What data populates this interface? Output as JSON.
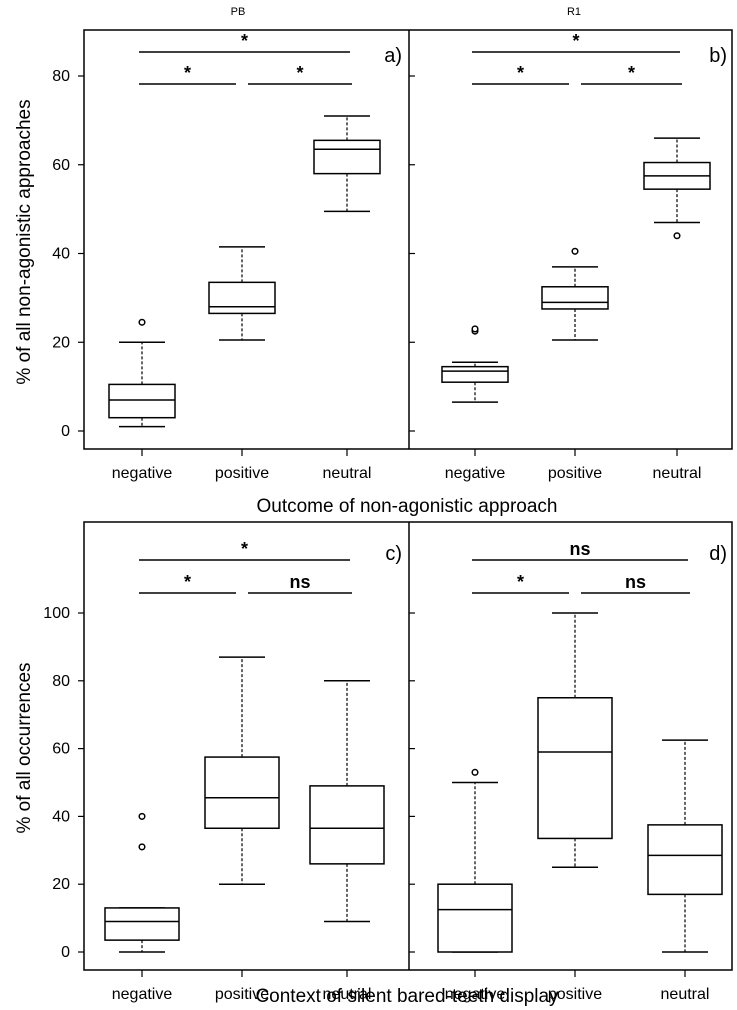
{
  "group_titles": [
    "PB",
    "R1"
  ],
  "chart_data": [
    {
      "type": "box",
      "group": "PB",
      "panel_label": "a)",
      "categories": [
        "negative",
        "positive",
        "neutral"
      ],
      "xlabel": "Outcome of non-agonistic approach",
      "ylabel": "% of all non-agonistic approaches",
      "ylim": [
        -3,
        90
      ],
      "yticks": [
        "0",
        "20",
        "40",
        "60",
        "80"
      ],
      "boxes": [
        {
          "min": 1,
          "q1": 3,
          "median": 7,
          "q3": 10.5,
          "max": 20,
          "outliers": [
            24.5
          ]
        },
        {
          "min": 20.5,
          "q1": 26.5,
          "median": 28,
          "q3": 33.5,
          "max": 41.5,
          "outliers": []
        },
        {
          "min": 49.5,
          "q1": 58,
          "median": 63.5,
          "q3": 65.5,
          "max": 71,
          "outliers": []
        }
      ],
      "significance": [
        {
          "from": 0,
          "to": 2,
          "label": "*"
        },
        {
          "from": 0,
          "to": 1,
          "label": "*"
        },
        {
          "from": 1,
          "to": 2,
          "label": "*"
        }
      ]
    },
    {
      "type": "box",
      "group": "R1",
      "panel_label": "b)",
      "categories": [
        "negative",
        "positive",
        "neutral"
      ],
      "xlabel": "Outcome of non-agonistic approach",
      "ylabel": "% of all non-agonistic approaches",
      "ylim": [
        -3,
        90
      ],
      "yticks": [
        "0",
        "20",
        "40",
        "60",
        "80"
      ],
      "boxes": [
        {
          "min": 6.5,
          "q1": 11,
          "median": 13.5,
          "q3": 14.5,
          "max": 15.5,
          "outliers": [
            22.5,
            23
          ]
        },
        {
          "min": 20.5,
          "q1": 27.5,
          "median": 29,
          "q3": 32.5,
          "max": 37,
          "outliers": [
            40.5
          ]
        },
        {
          "min": 47,
          "q1": 54.5,
          "median": 57.5,
          "q3": 60.5,
          "max": 66,
          "outliers": [
            44
          ]
        }
      ],
      "significance": [
        {
          "from": 0,
          "to": 2,
          "label": "*"
        },
        {
          "from": 0,
          "to": 1,
          "label": "*"
        },
        {
          "from": 1,
          "to": 2,
          "label": "*"
        }
      ]
    },
    {
      "type": "box",
      "group": "PB",
      "panel_label": "c)",
      "categories": [
        "negative",
        "positive",
        "neutral"
      ],
      "xlabel": "Context of silent bared-teeth display",
      "ylabel": "% of all occurrences",
      "ylim": [
        -5,
        130
      ],
      "yticks": [
        "0",
        "20",
        "40",
        "60",
        "80",
        "100"
      ],
      "boxes": [
        {
          "min": 0,
          "q1": 3.5,
          "median": 9,
          "q3": 13,
          "max": 13,
          "outliers": [
            31,
            40
          ]
        },
        {
          "min": 20,
          "q1": 36.5,
          "median": 45.5,
          "q3": 57.5,
          "max": 87,
          "outliers": []
        },
        {
          "min": 9,
          "q1": 26,
          "median": 36.5,
          "q3": 49,
          "max": 80,
          "outliers": []
        }
      ],
      "significance": [
        {
          "from": 0,
          "to": 2,
          "label": "*"
        },
        {
          "from": 0,
          "to": 1,
          "label": "*"
        },
        {
          "from": 1,
          "to": 2,
          "label": "ns"
        }
      ]
    },
    {
      "type": "box",
      "group": "R1",
      "panel_label": "d)",
      "categories": [
        "negative",
        "positive",
        "neutral"
      ],
      "xlabel": "Context of silent bared-teeth display",
      "ylabel": "% of all occurrences",
      "ylim": [
        -5,
        130
      ],
      "yticks": [
        "0",
        "20",
        "40",
        "60",
        "80",
        "100"
      ],
      "boxes": [
        {
          "min": 0,
          "q1": 0,
          "median": 12.5,
          "q3": 20,
          "max": 50,
          "outliers": [
            53
          ]
        },
        {
          "min": 25,
          "q1": 33.5,
          "median": 59,
          "q3": 75,
          "max": 100,
          "outliers": []
        },
        {
          "min": 0,
          "q1": 17,
          "median": 28.5,
          "q3": 37.5,
          "max": 62.5,
          "outliers": []
        }
      ],
      "significance": [
        {
          "from": 0,
          "to": 2,
          "label": "ns"
        },
        {
          "from": 0,
          "to": 1,
          "label": "*"
        },
        {
          "from": 1,
          "to": 2,
          "label": "ns"
        }
      ]
    }
  ]
}
